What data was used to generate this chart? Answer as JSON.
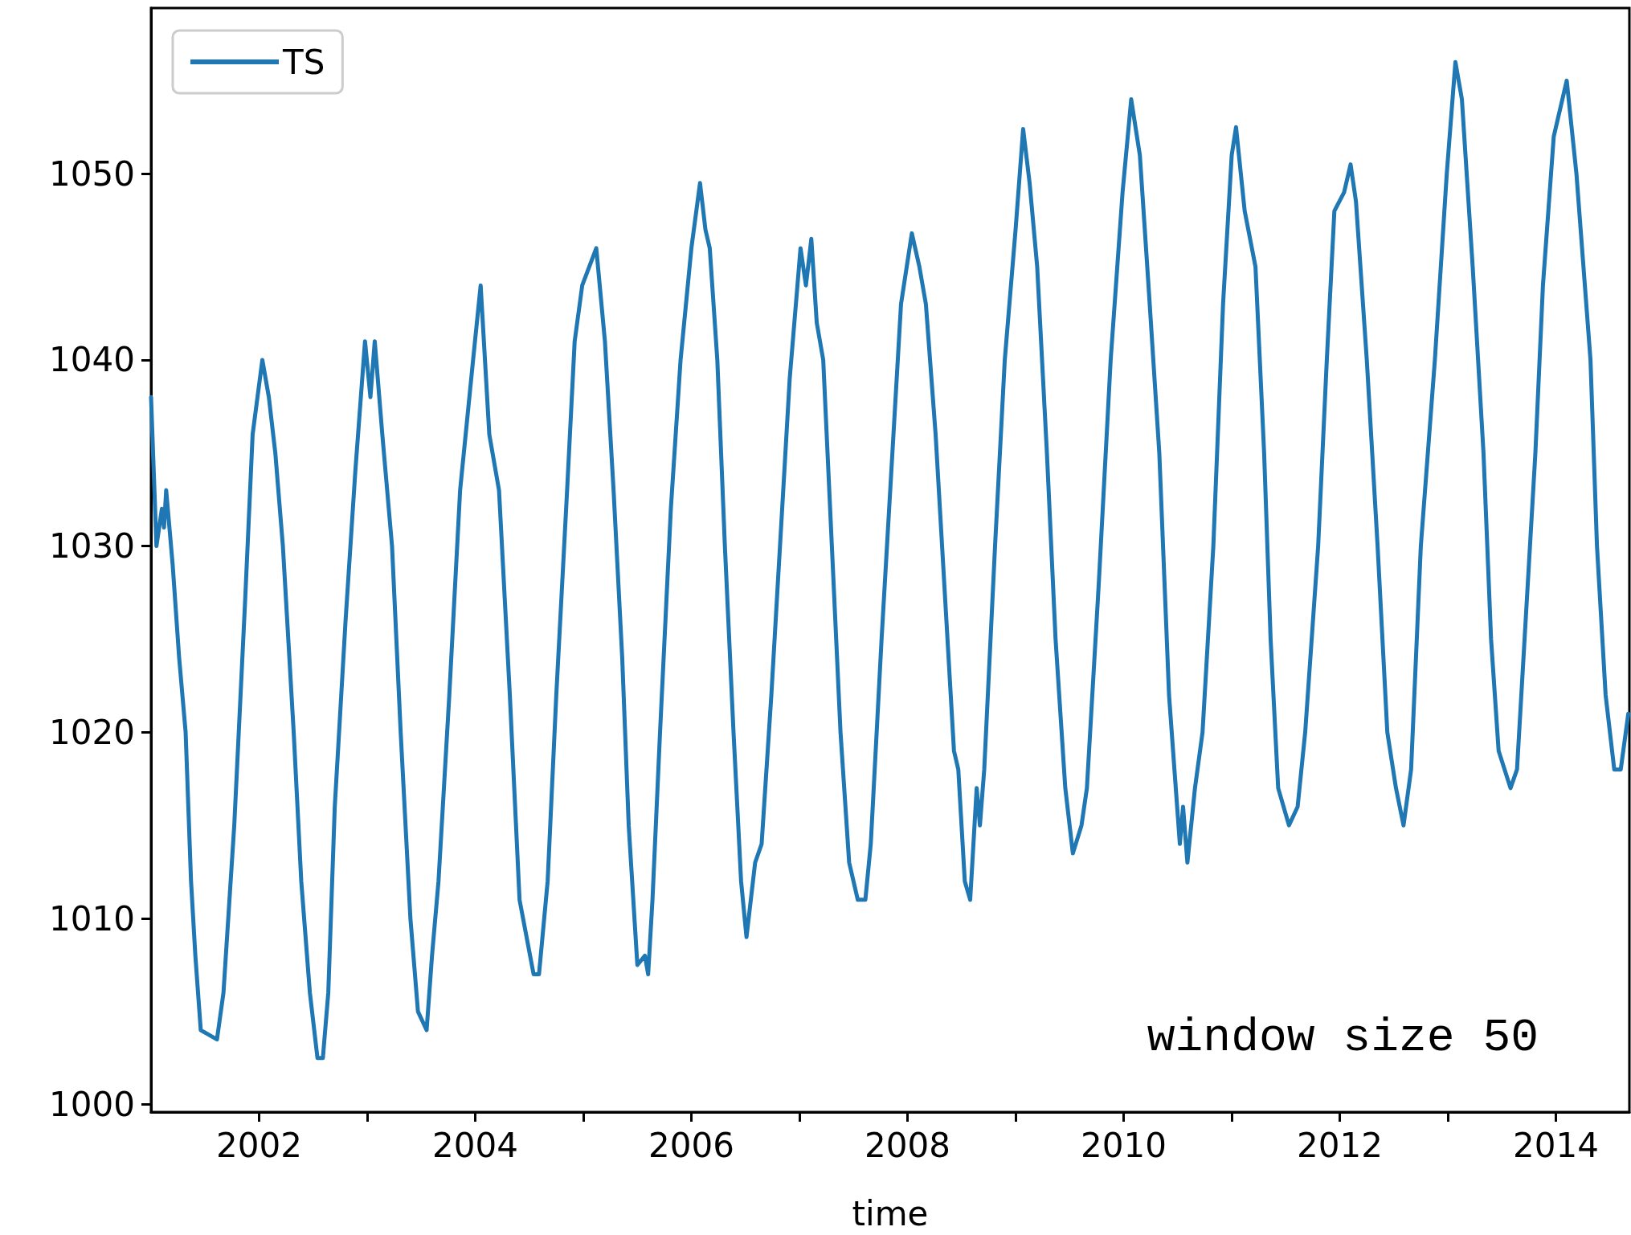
{
  "chart_data": {
    "type": "line",
    "xlabel": "time",
    "annotations": [
      "window size 50"
    ],
    "legend": "top left",
    "grid": false,
    "marker": "none",
    "line_style": "solid",
    "xlim": [
      2001,
      2014.68
    ],
    "ylim": [
      999.6,
      1058.9
    ],
    "xticks": [
      {
        "value": 2002,
        "label": "2002"
      },
      {
        "value": 2003,
        "label": null
      },
      {
        "value": 2004,
        "label": "2004"
      },
      {
        "value": 2005,
        "label": null
      },
      {
        "value": 2006,
        "label": "2006"
      },
      {
        "value": 2007,
        "label": null
      },
      {
        "value": 2008,
        "label": "2008"
      },
      {
        "value": 2009,
        "label": null
      },
      {
        "value": 2010,
        "label": "2010"
      },
      {
        "value": 2011,
        "label": null
      },
      {
        "value": 2012,
        "label": "2012"
      },
      {
        "value": 2013,
        "label": null
      },
      {
        "value": 2014,
        "label": "2014"
      }
    ],
    "yticks": [
      1000,
      1010,
      1020,
      1030,
      1040,
      1050
    ],
    "series": [
      {
        "name": "TS",
        "color": "#1f77b4",
        "x": [
          2001.0,
          2001.05,
          2001.1,
          2001.12,
          2001.14,
          2001.2,
          2001.26,
          2001.32,
          2001.37,
          2001.41,
          2001.46,
          2001.61,
          2001.67,
          2001.77,
          2001.87,
          2001.94,
          2002.03,
          2002.09,
          2002.15,
          2002.22,
          2002.32,
          2002.39,
          2002.47,
          2002.54,
          2002.59,
          2002.64,
          2002.7,
          2002.8,
          2002.89,
          2002.98,
          2003.03,
          2003.07,
          2003.14,
          2003.23,
          2003.31,
          2003.4,
          2003.47,
          2003.55,
          2003.6,
          2003.66,
          2003.76,
          2003.86,
          2003.98,
          2004.05,
          2004.13,
          2004.22,
          2004.32,
          2004.41,
          2004.54,
          2004.59,
          2004.67,
          2004.75,
          2004.85,
          2004.92,
          2004.99,
          2005.12,
          2005.2,
          2005.28,
          2005.36,
          2005.42,
          2005.5,
          2005.57,
          2005.6,
          2005.64,
          2005.71,
          2005.81,
          2005.9,
          2006.0,
          2006.08,
          2006.13,
          2006.17,
          2006.24,
          2006.31,
          2006.39,
          2006.46,
          2006.51,
          2006.59,
          2006.65,
          2006.74,
          2006.84,
          2006.91,
          2007.01,
          2007.06,
          2007.11,
          2007.16,
          2007.22,
          2007.3,
          2007.38,
          2007.46,
          2007.54,
          2007.61,
          2007.66,
          2007.76,
          2007.86,
          2007.94,
          2008.04,
          2008.11,
          2008.17,
          2008.26,
          2008.36,
          2008.43,
          2008.47,
          2008.53,
          2008.58,
          2008.64,
          2008.67,
          2008.71,
          2008.81,
          2008.9,
          2009.0,
          2009.07,
          2009.13,
          2009.2,
          2009.29,
          2009.37,
          2009.46,
          2009.53,
          2009.61,
          2009.66,
          2009.77,
          2009.88,
          2009.99,
          2010.07,
          2010.15,
          2010.23,
          2010.33,
          2010.42,
          2010.52,
          2010.55,
          2010.59,
          2010.66,
          2010.73,
          2010.83,
          2010.92,
          2011.0,
          2011.04,
          2011.12,
          2011.22,
          2011.3,
          2011.36,
          2011.43,
          2011.53,
          2011.61,
          2011.68,
          2011.8,
          2011.88,
          2011.95,
          2012.04,
          2012.1,
          2012.15,
          2012.25,
          2012.35,
          2012.44,
          2012.52,
          2012.59,
          2012.66,
          2012.75,
          2012.88,
          2012.99,
          2013.07,
          2013.13,
          2013.23,
          2013.33,
          2013.4,
          2013.47,
          2013.58,
          2013.64,
          2013.71,
          2013.81,
          2013.88,
          2013.98,
          2014.1,
          2014.19,
          2014.32,
          2014.38,
          2014.46,
          2014.54,
          2014.6,
          2014.67
        ],
        "values": [
          1038,
          1030,
          1032,
          1031,
          1033,
          1029,
          1024,
          1020,
          1012,
          1008,
          1004,
          1003.5,
          1006,
          1015,
          1027,
          1036,
          1040,
          1038,
          1035,
          1030,
          1020,
          1012,
          1006,
          1002.5,
          1002.5,
          1006,
          1016,
          1026,
          1034,
          1041,
          1038,
          1041,
          1036,
          1030,
          1020,
          1010,
          1005,
          1004,
          1008,
          1012,
          1022,
          1033,
          1040,
          1044,
          1036,
          1033,
          1022,
          1011,
          1007,
          1007,
          1012,
          1022,
          1033,
          1041,
          1044,
          1046,
          1041,
          1033,
          1024,
          1015,
          1007.5,
          1008,
          1007,
          1011,
          1020,
          1032,
          1040,
          1046,
          1049.5,
          1047,
          1046,
          1040,
          1030,
          1020,
          1012,
          1009,
          1013,
          1014,
          1022,
          1032,
          1039,
          1046,
          1044,
          1046.5,
          1042,
          1040,
          1030,
          1020,
          1013,
          1011,
          1011,
          1014,
          1025,
          1035,
          1043,
          1046.8,
          1045,
          1043,
          1036,
          1026,
          1019,
          1018,
          1012,
          1011,
          1017,
          1015,
          1018,
          1030,
          1040,
          1047,
          1052.4,
          1049.5,
          1045,
          1035,
          1025,
          1017,
          1013.5,
          1015,
          1017,
          1028,
          1040,
          1049,
          1054,
          1051,
          1044,
          1035,
          1022,
          1014,
          1016,
          1013,
          1017,
          1020,
          1030,
          1043,
          1051,
          1052.5,
          1048,
          1045,
          1035,
          1025,
          1017,
          1015,
          1016,
          1020,
          1030,
          1040,
          1048,
          1049,
          1050.5,
          1048.5,
          1040,
          1030,
          1020,
          1017,
          1015,
          1018,
          1030,
          1040,
          1050,
          1056,
          1054,
          1045,
          1035,
          1025,
          1019,
          1017,
          1018,
          1025,
          1035,
          1044,
          1052,
          1055,
          1050,
          1040,
          1030,
          1022,
          1018,
          1018,
          1021
        ]
      }
    ]
  }
}
